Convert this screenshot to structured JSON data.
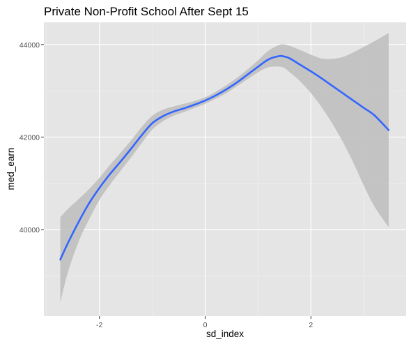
{
  "chart_data": {
    "type": "line",
    "title": "Private Non-Profit School After Sept 15",
    "xlabel": "sd_index",
    "ylabel": "med_earn",
    "xlim": [
      -3.05,
      3.8
    ],
    "ylim": [
      38130,
      44480
    ],
    "x_ticks": [
      -2,
      0,
      2
    ],
    "y_ticks": [
      40000,
      42000,
      44000
    ],
    "grid": true,
    "panel_background": "#e5e5e5",
    "line_color": "#3366ff",
    "band_color": "#bdbdbd",
    "series": [
      {
        "x": [
          -2.74,
          -2.6,
          -2.4,
          -2.2,
          -2.0,
          -1.8,
          -1.6,
          -1.4,
          -1.2,
          -1.0,
          -0.8,
          -0.6,
          -0.4,
          -0.2,
          0.0,
          0.2,
          0.4,
          0.6,
          0.8,
          1.0,
          1.2,
          1.4,
          1.5,
          1.6,
          1.8,
          2.0,
          2.2,
          2.4,
          2.6,
          2.8,
          3.0,
          3.2,
          3.47
        ],
        "y": [
          39350,
          39700,
          40150,
          40560,
          40900,
          41200,
          41470,
          41750,
          42040,
          42300,
          42450,
          42550,
          42620,
          42700,
          42790,
          42900,
          43030,
          43180,
          43350,
          43520,
          43680,
          43750,
          43740,
          43700,
          43560,
          43420,
          43270,
          43110,
          42950,
          42790,
          42630,
          42470,
          42150
        ],
        "lower": [
          38420,
          39060,
          39720,
          40210,
          40640,
          40970,
          41270,
          41560,
          41870,
          42160,
          42340,
          42460,
          42540,
          42630,
          42720,
          42830,
          42950,
          43100,
          43250,
          43400,
          43510,
          43520,
          43490,
          43400,
          43200,
          42950,
          42650,
          42300,
          41900,
          41450,
          40950,
          40500,
          40050
        ],
        "upper": [
          40270,
          40440,
          40650,
          40870,
          41120,
          41400,
          41660,
          41930,
          42220,
          42460,
          42590,
          42660,
          42720,
          42780,
          42860,
          42980,
          43120,
          43280,
          43460,
          43660,
          43870,
          43990,
          44000,
          43970,
          43880,
          43780,
          43700,
          43690,
          43730,
          43830,
          43950,
          44070,
          44250
        ]
      }
    ]
  }
}
